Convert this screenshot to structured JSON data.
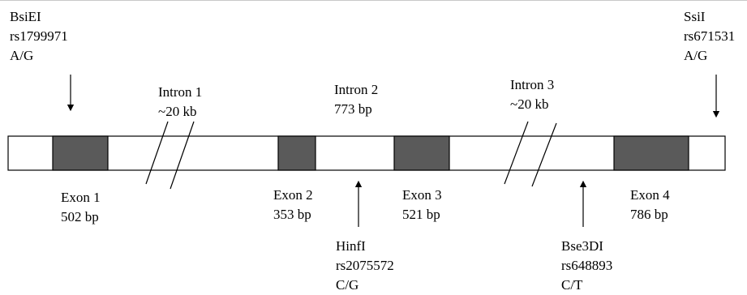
{
  "gene_diagram": {
    "exons": [
      {
        "name": "Exon 1",
        "size": "502 bp"
      },
      {
        "name": "Exon 2",
        "size": "353 bp"
      },
      {
        "name": "Exon 3",
        "size": "521 bp"
      },
      {
        "name": "Exon 4",
        "size": "786 bp"
      }
    ],
    "introns": [
      {
        "name": "Intron 1",
        "size": "~20 kb"
      },
      {
        "name": "Intron 2",
        "size": "773 bp"
      },
      {
        "name": "Intron 3",
        "size": "~20 kb"
      }
    ],
    "polymorphisms": [
      {
        "enzyme": "BsiEI",
        "snp": "rs1799971",
        "alleles": "A/G"
      },
      {
        "enzyme": "SsiI",
        "snp": "rs671531",
        "alleles": "A/G"
      },
      {
        "enzyme": "HinfI",
        "snp": "rs2075572",
        "alleles": "C/G"
      },
      {
        "enzyme": "Bse3DI",
        "snp": "rs648893",
        "alleles": "C/T"
      }
    ],
    "colors": {
      "exon_fill": "#5a5a5a",
      "line": "#000000",
      "background": "#ffffff"
    }
  }
}
